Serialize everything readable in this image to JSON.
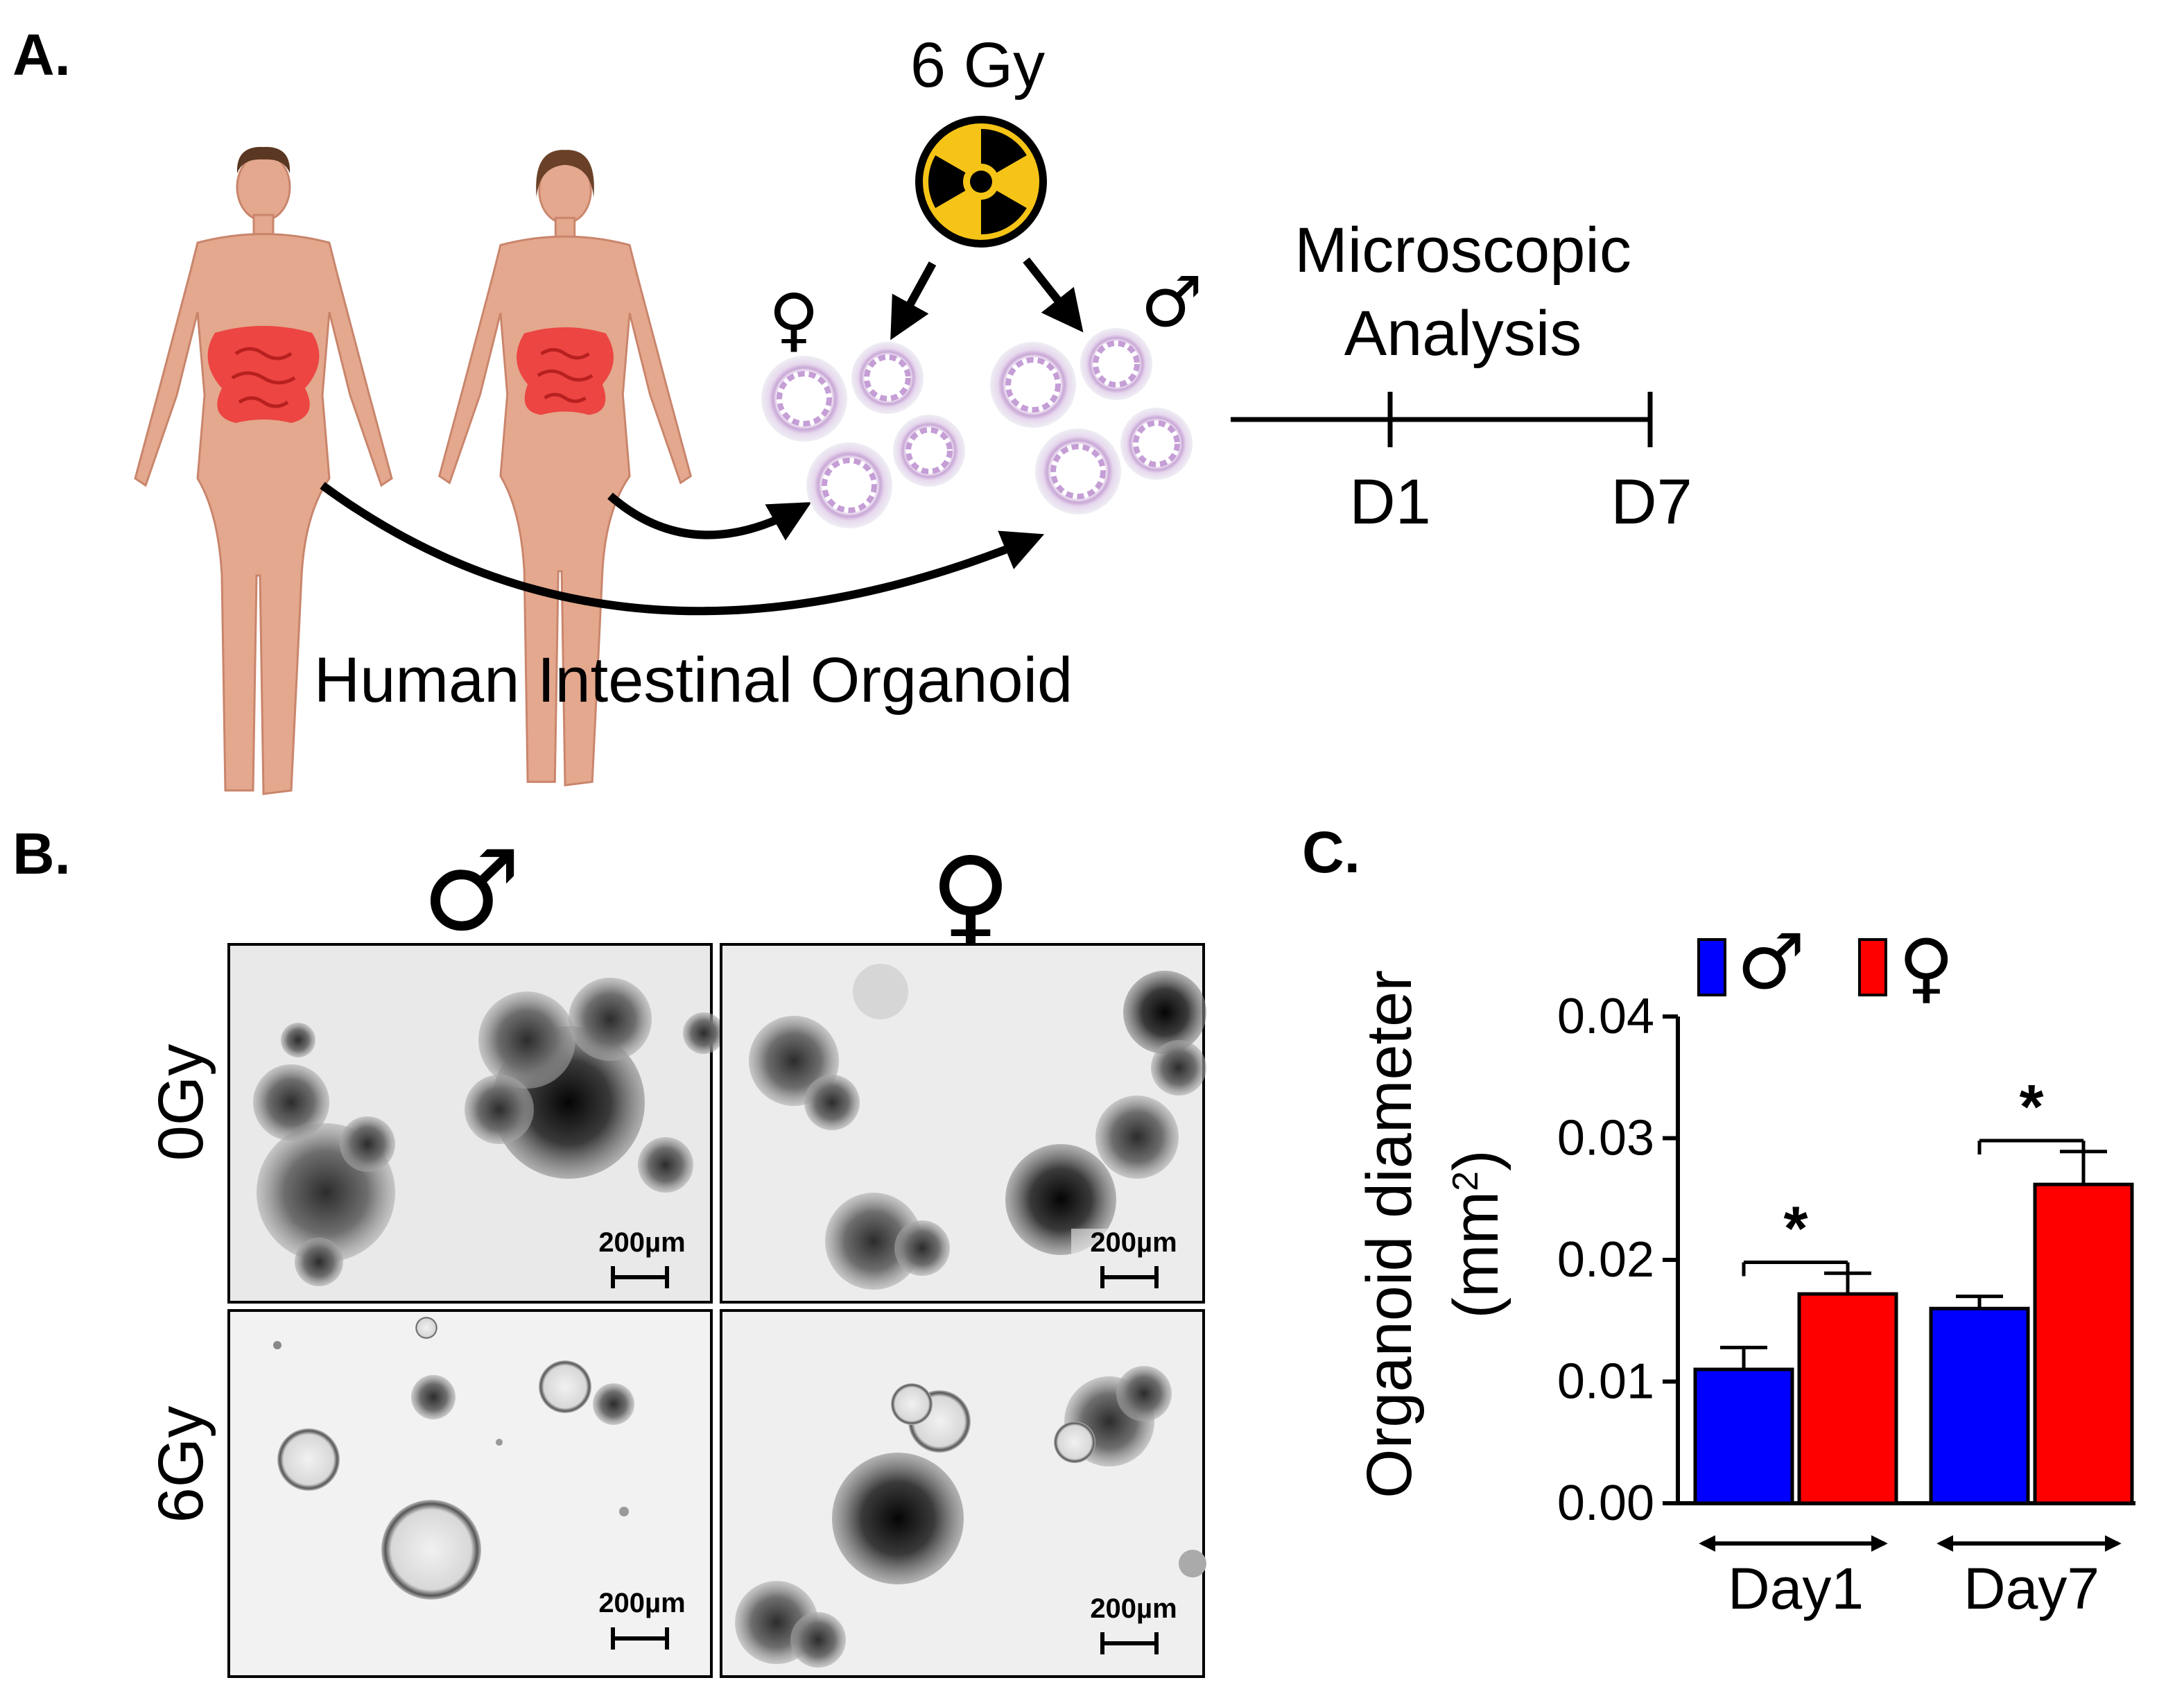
{
  "panel_a": {
    "label": "A.",
    "dose_label": "6 Gy",
    "analysis_line1": "Microscopic",
    "analysis_line2": "Analysis",
    "day_start": "D1",
    "day_end": "D7",
    "caption": "Human Intestinal Organoid",
    "female_symbol": "♀",
    "male_symbol": "♂",
    "icons": [
      "male-human-body-icon",
      "female-human-body-icon",
      "radiation-icon",
      "organoid-icon"
    ]
  },
  "panel_b": {
    "label": "B.",
    "col_male_symbol": "♂",
    "col_female_symbol": "♀",
    "row_0gy": "0Gy",
    "row_6gy": "6Gy",
    "scale_bar_label": "200µm"
  },
  "colors": {
    "male": "#0000ff",
    "female": "#ff0000",
    "skin": "#e3a88e",
    "intestine": "#ec3a3a",
    "radiation_yellow": "#f6c417"
  },
  "chart_data": {
    "type": "bar",
    "panel_label": "C.",
    "categories": [
      "Day1",
      "Day7"
    ],
    "series": [
      {
        "name": "♂",
        "color": "#0000ff",
        "values": [
          0.011,
          0.016
        ],
        "errors": [
          0.0018,
          0.001
        ]
      },
      {
        "name": "♀",
        "color": "#ff0000",
        "values": [
          0.0172,
          0.0262
        ],
        "errors": [
          0.0017,
          0.0027
        ]
      }
    ],
    "ylabel_line1": "Organoid diameter",
    "ylabel_line2_pre": "(mm",
    "ylabel_sup": "2",
    "ylabel_line2_post": ")",
    "ylim": [
      0,
      0.04
    ],
    "yticks": [
      "0.00",
      "0.01",
      "0.02",
      "0.03",
      "0.04"
    ],
    "significance": [
      "*",
      "*"
    ],
    "legend": [
      "♂",
      "♀"
    ],
    "legend_position": "top"
  }
}
